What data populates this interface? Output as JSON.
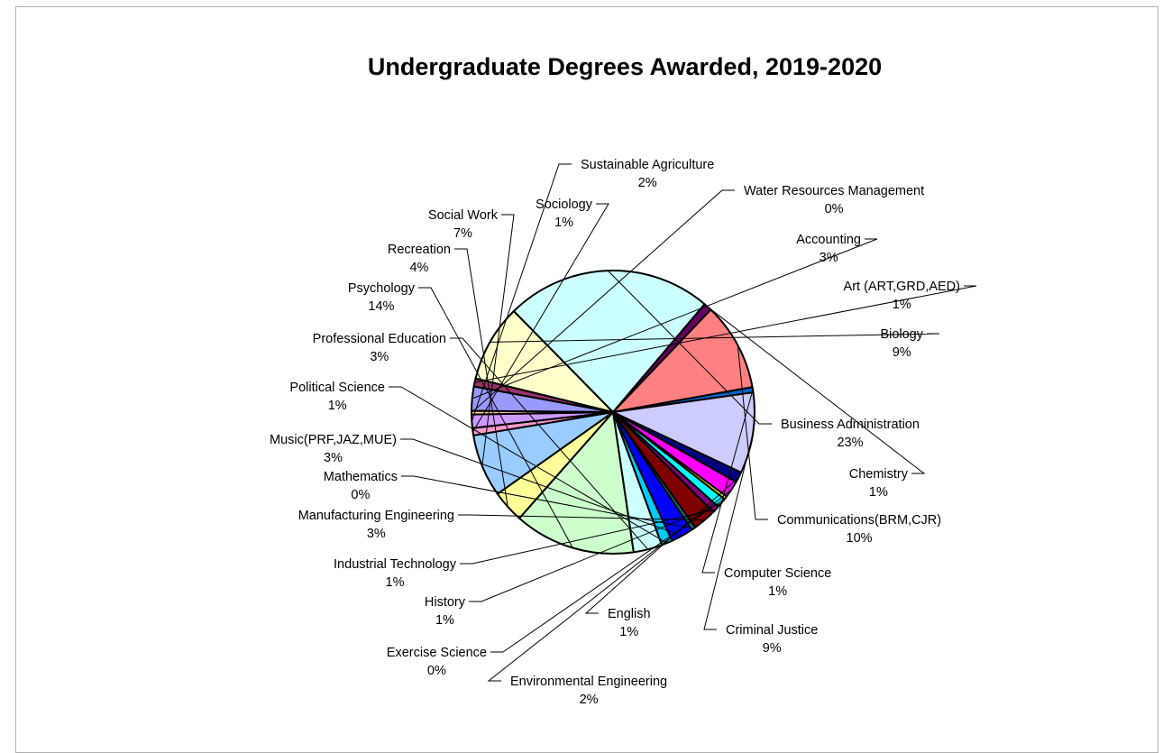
{
  "chart_data": {
    "type": "pie",
    "title": "Undergraduate Degrees Awarded, 2019-2020",
    "slices": [
      {
        "label": "Accounting",
        "pct_label": "3%",
        "value": 2.7,
        "color": "#9999ff"
      },
      {
        "label": "Art (ART,GRD,AED)",
        "pct_label": "1%",
        "value": 0.9,
        "color": "#993366"
      },
      {
        "label": "Biology",
        "pct_label": "9%",
        "value": 8.6,
        "color": "#ffffcc"
      },
      {
        "label": "Business Administration",
        "pct_label": "23%",
        "value": 23.0,
        "color": "#ccffff"
      },
      {
        "label": "Chemistry",
        "pct_label": "1%",
        "value": 0.9,
        "color": "#660066"
      },
      {
        "label": "Communications(BRM,CJR)",
        "pct_label": "10%",
        "value": 9.8,
        "color": "#ff8080"
      },
      {
        "label": "Computer Science",
        "pct_label": "1%",
        "value": 0.6,
        "color": "#0066cc"
      },
      {
        "label": "Criminal Justice",
        "pct_label": "9%",
        "value": 9.0,
        "color": "#ccccff"
      },
      {
        "label": "English",
        "pct_label": "1%",
        "value": 1.2,
        "color": "#000080"
      },
      {
        "label": "Environmental Engineering",
        "pct_label": "2%",
        "value": 1.9,
        "color": "#ff00ff"
      },
      {
        "label": "Exercise Science",
        "pct_label": "0%",
        "value": 0.35,
        "color": "#ffff00"
      },
      {
        "label": "History",
        "pct_label": "1%",
        "value": 1.1,
        "color": "#00ffff"
      },
      {
        "label": "Industrial Technology",
        "pct_label": "1%",
        "value": 0.8,
        "color": "#800080"
      },
      {
        "label": "Manufacturing Engineering",
        "pct_label": "3%",
        "value": 2.6,
        "color": "#800000"
      },
      {
        "label": "Mathematics",
        "pct_label": "0%",
        "value": 0.45,
        "color": "#008080"
      },
      {
        "label": "Music(PRF,JAZ,MUE)",
        "pct_label": "3%",
        "value": 2.5,
        "color": "#0000ff"
      },
      {
        "label": "Political Science",
        "pct_label": "1%",
        "value": 1.2,
        "color": "#00ccff"
      },
      {
        "label": "Professional Education",
        "pct_label": "3%",
        "value": 3.2,
        "color": "#ccffff"
      },
      {
        "label": "Psychology",
        "pct_label": "14%",
        "value": 13.5,
        "color": "#ccffcc"
      },
      {
        "label": "Recreation",
        "pct_label": "4%",
        "value": 3.6,
        "color": "#ffff99"
      },
      {
        "label": "Social Work",
        "pct_label": "7%",
        "value": 7.0,
        "color": "#99ccff"
      },
      {
        "label": "Sociology",
        "pct_label": "1%",
        "value": 0.8,
        "color": "#ff99cc"
      },
      {
        "label": "Sustainable Agriculture",
        "pct_label": "2%",
        "value": 1.5,
        "color": "#cc99ff"
      },
      {
        "label": "Water Resources Management",
        "pct_label": "0%",
        "value": 0.4,
        "color": "#ffcc99"
      }
    ]
  }
}
